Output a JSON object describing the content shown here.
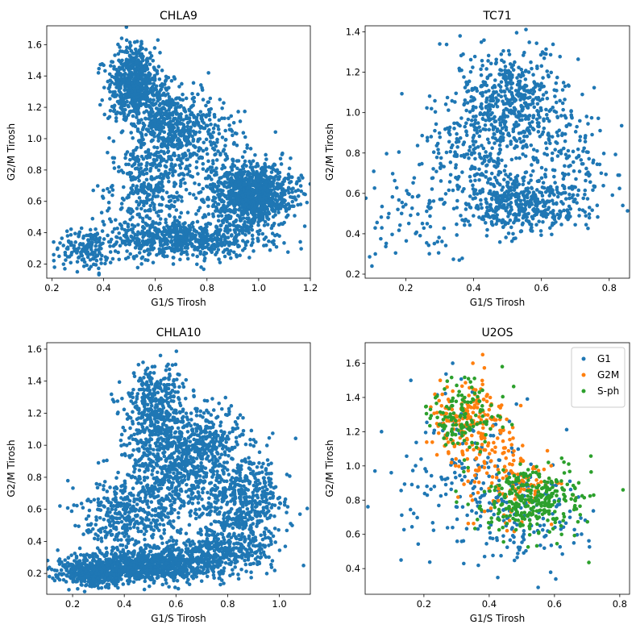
{
  "figure": {
    "width": 789,
    "height": 790
  },
  "colors": {
    "blue": "#1f77b4",
    "orange": "#ff7f0e",
    "green": "#2ca02c"
  },
  "chart_data": [
    {
      "type": "scatter",
      "title": "CHLA9",
      "xlabel": "G1/S Tirosh",
      "ylabel": "G2/M Tirosh",
      "xlim": [
        0.18,
        1.2
      ],
      "ylim": [
        0.11,
        1.72
      ],
      "xticks": [
        0.2,
        0.4,
        0.6,
        0.8,
        1.0,
        1.2
      ],
      "yticks": [
        0.2,
        0.4,
        0.6,
        0.8,
        1.0,
        1.2,
        1.4,
        1.6
      ],
      "grid": false,
      "series": [
        {
          "color": "#1f77b4",
          "count": 3500,
          "clusters": [
            {
              "w": 0.2,
              "cx": 0.52,
              "cy": 1.35,
              "sx": 0.05,
              "sy": 0.12
            },
            {
              "w": 0.12,
              "cx": 0.66,
              "cy": 1.08,
              "sx": 0.08,
              "sy": 0.12
            },
            {
              "w": 0.3,
              "cx": 0.97,
              "cy": 0.65,
              "sx": 0.08,
              "sy": 0.1
            },
            {
              "w": 0.2,
              "cx": 0.7,
              "cy": 0.36,
              "sx": 0.15,
              "sy": 0.06
            },
            {
              "w": 0.1,
              "cx": 0.58,
              "cy": 0.7,
              "sx": 0.08,
              "sy": 0.15
            },
            {
              "w": 0.04,
              "cx": 0.33,
              "cy": 0.28,
              "sx": 0.05,
              "sy": 0.06
            },
            {
              "w": 0.04,
              "cx": 0.8,
              "cy": 1.0,
              "sx": 0.08,
              "sy": 0.12
            }
          ],
          "points": [
            [
              0.21,
              0.18
            ],
            [
              0.25,
              0.17
            ],
            [
              0.47,
              1.64
            ],
            [
              0.53,
              1.62
            ],
            [
              1.17,
              0.75
            ],
            [
              0.36,
              0.67
            ],
            [
              0.38,
              1.42
            ],
            [
              0.85,
              1.25
            ]
          ]
        }
      ]
    },
    {
      "type": "scatter",
      "title": "TC71",
      "xlabel": "G1/S Tirosh",
      "ylabel": "G2/M Tirosh",
      "xlim": [
        0.08,
        0.86
      ],
      "ylim": [
        0.18,
        1.43
      ],
      "xticks": [
        0.2,
        0.4,
        0.6,
        0.8
      ],
      "yticks": [
        0.2,
        0.4,
        0.6,
        0.8,
        1.0,
        1.2,
        1.4
      ],
      "grid": false,
      "series": [
        {
          "color": "#1f77b4",
          "count": 1400,
          "clusters": [
            {
              "w": 0.3,
              "cx": 0.52,
              "cy": 1.08,
              "sx": 0.08,
              "sy": 0.12
            },
            {
              "w": 0.35,
              "cx": 0.55,
              "cy": 0.55,
              "sx": 0.1,
              "sy": 0.07
            },
            {
              "w": 0.2,
              "cx": 0.42,
              "cy": 0.8,
              "sx": 0.09,
              "sy": 0.15
            },
            {
              "w": 0.1,
              "cx": 0.68,
              "cy": 0.78,
              "sx": 0.07,
              "sy": 0.15
            },
            {
              "w": 0.05,
              "cx": 0.22,
              "cy": 0.5,
              "sx": 0.07,
              "sy": 0.12
            }
          ],
          "points": [
            [
              0.1,
              0.24
            ],
            [
              0.11,
              0.3
            ],
            [
              0.36,
              1.38
            ],
            [
              0.3,
              1.34
            ],
            [
              0.83,
              0.69
            ],
            [
              0.84,
              0.54
            ],
            [
              0.15,
              0.5
            ]
          ]
        }
      ]
    },
    {
      "type": "scatter",
      "title": "CHLA10",
      "xlabel": "G1/S Tirosh",
      "ylabel": "G2/M Tirosh",
      "xlim": [
        0.1,
        1.12
      ],
      "ylim": [
        0.07,
        1.64
      ],
      "xticks": [
        0.2,
        0.4,
        0.6,
        0.8,
        1.0
      ],
      "yticks": [
        0.2,
        0.4,
        0.6,
        0.8,
        1.0,
        1.2,
        1.4,
        1.6
      ],
      "grid": false,
      "series": [
        {
          "color": "#1f77b4",
          "count": 3800,
          "clusters": [
            {
              "w": 0.25,
              "cx": 0.5,
              "cy": 0.25,
              "sx": 0.15,
              "sy": 0.05
            },
            {
              "w": 0.1,
              "cx": 0.28,
              "cy": 0.2,
              "sx": 0.06,
              "sy": 0.04
            },
            {
              "w": 0.12,
              "cx": 0.52,
              "cy": 1.22,
              "sx": 0.06,
              "sy": 0.14
            },
            {
              "w": 0.12,
              "cx": 0.56,
              "cy": 0.8,
              "sx": 0.08,
              "sy": 0.18
            },
            {
              "w": 0.14,
              "cx": 0.85,
              "cy": 0.65,
              "sx": 0.09,
              "sy": 0.14
            },
            {
              "w": 0.1,
              "cx": 0.7,
              "cy": 1.0,
              "sx": 0.08,
              "sy": 0.12
            },
            {
              "w": 0.09,
              "cx": 0.4,
              "cy": 0.55,
              "sx": 0.08,
              "sy": 0.12
            },
            {
              "w": 0.08,
              "cx": 0.78,
              "cy": 0.35,
              "sx": 0.1,
              "sy": 0.06
            }
          ],
          "points": [
            [
              0.15,
              0.16
            ],
            [
              0.54,
              1.56
            ],
            [
              1.08,
              0.57
            ],
            [
              0.3,
              0.89
            ],
            [
              0.24,
              0.61
            ],
            [
              0.44,
              1.43
            ],
            [
              0.49,
              1.48
            ]
          ]
        }
      ]
    },
    {
      "type": "scatter",
      "title": "U2OS",
      "xlabel": "G1/S Tirosh",
      "ylabel": "G2/M Tirosh",
      "xlim": [
        0.02,
        0.83
      ],
      "ylim": [
        0.25,
        1.72
      ],
      "xticks": [
        0.2,
        0.4,
        0.6,
        0.8
      ],
      "yticks": [
        0.4,
        0.6,
        0.8,
        1.0,
        1.2,
        1.4,
        1.6
      ],
      "grid": false,
      "legend": "top-right",
      "series": [
        {
          "name": "G1",
          "color": "#1f77b4",
          "count": 300,
          "clusters": [
            {
              "w": 0.5,
              "cx": 0.3,
              "cy": 0.95,
              "sx": 0.1,
              "sy": 0.22
            },
            {
              "w": 0.5,
              "cx": 0.5,
              "cy": 0.7,
              "sx": 0.1,
              "sy": 0.15
            }
          ],
          "points": [
            [
              0.05,
              0.97
            ],
            [
              0.13,
              0.45
            ],
            [
              0.55,
              0.29
            ],
            [
              0.1,
              0.96
            ],
            [
              0.16,
              1.5
            ]
          ]
        },
        {
          "name": "G2M",
          "color": "#ff7f0e",
          "count": 320,
          "clusters": [
            {
              "w": 0.55,
              "cx": 0.33,
              "cy": 1.25,
              "sx": 0.06,
              "sy": 0.13
            },
            {
              "w": 0.45,
              "cx": 0.47,
              "cy": 0.92,
              "sx": 0.07,
              "sy": 0.12
            }
          ],
          "points": [
            [
              0.38,
              1.65
            ],
            [
              0.35,
              1.6
            ],
            [
              0.25,
              1.5
            ]
          ]
        },
        {
          "name": "S-ph",
          "color": "#2ca02c",
          "count": 430,
          "clusters": [
            {
              "w": 0.3,
              "cx": 0.32,
              "cy": 1.3,
              "sx": 0.06,
              "sy": 0.1
            },
            {
              "w": 0.7,
              "cx": 0.54,
              "cy": 0.8,
              "sx": 0.08,
              "sy": 0.1
            }
          ],
          "points": [
            [
              0.81,
              0.86
            ],
            [
              0.44,
              1.58
            ],
            [
              0.22,
              1.33
            ]
          ]
        }
      ]
    }
  ]
}
